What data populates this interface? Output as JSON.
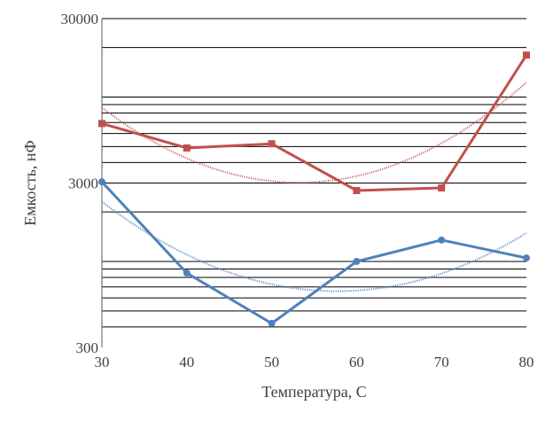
{
  "chart_data": {
    "type": "line",
    "title": "",
    "xlabel": "Температура, С",
    "ylabel": "Емкость, нФ",
    "x": [
      30,
      40,
      50,
      60,
      70,
      80
    ],
    "x_ticks": [
      "30",
      "40",
      "50",
      "60",
      "70",
      "80"
    ],
    "xlim": [
      30,
      80
    ],
    "y_scale": "log",
    "ylim": [
      300,
      30000
    ],
    "y_ticks": [
      "300",
      "3000",
      "30000"
    ],
    "grid": "horizontal minor log gridlines",
    "legend": "none",
    "series": [
      {
        "color": "#c0504d",
        "marker": "square",
        "values": [
          6900,
          4900,
          5200,
          2700,
          2800,
          18000
        ],
        "trendline": {
          "type": "polynomial",
          "order": 2,
          "style": "dotted"
        }
      },
      {
        "color": "#4f81bd",
        "marker": "circle",
        "values": [
          3050,
          850,
          420,
          1000,
          1350,
          1050
        ],
        "trendline": {
          "type": "polynomial",
          "order": 2,
          "style": "dotted"
        }
      }
    ]
  }
}
